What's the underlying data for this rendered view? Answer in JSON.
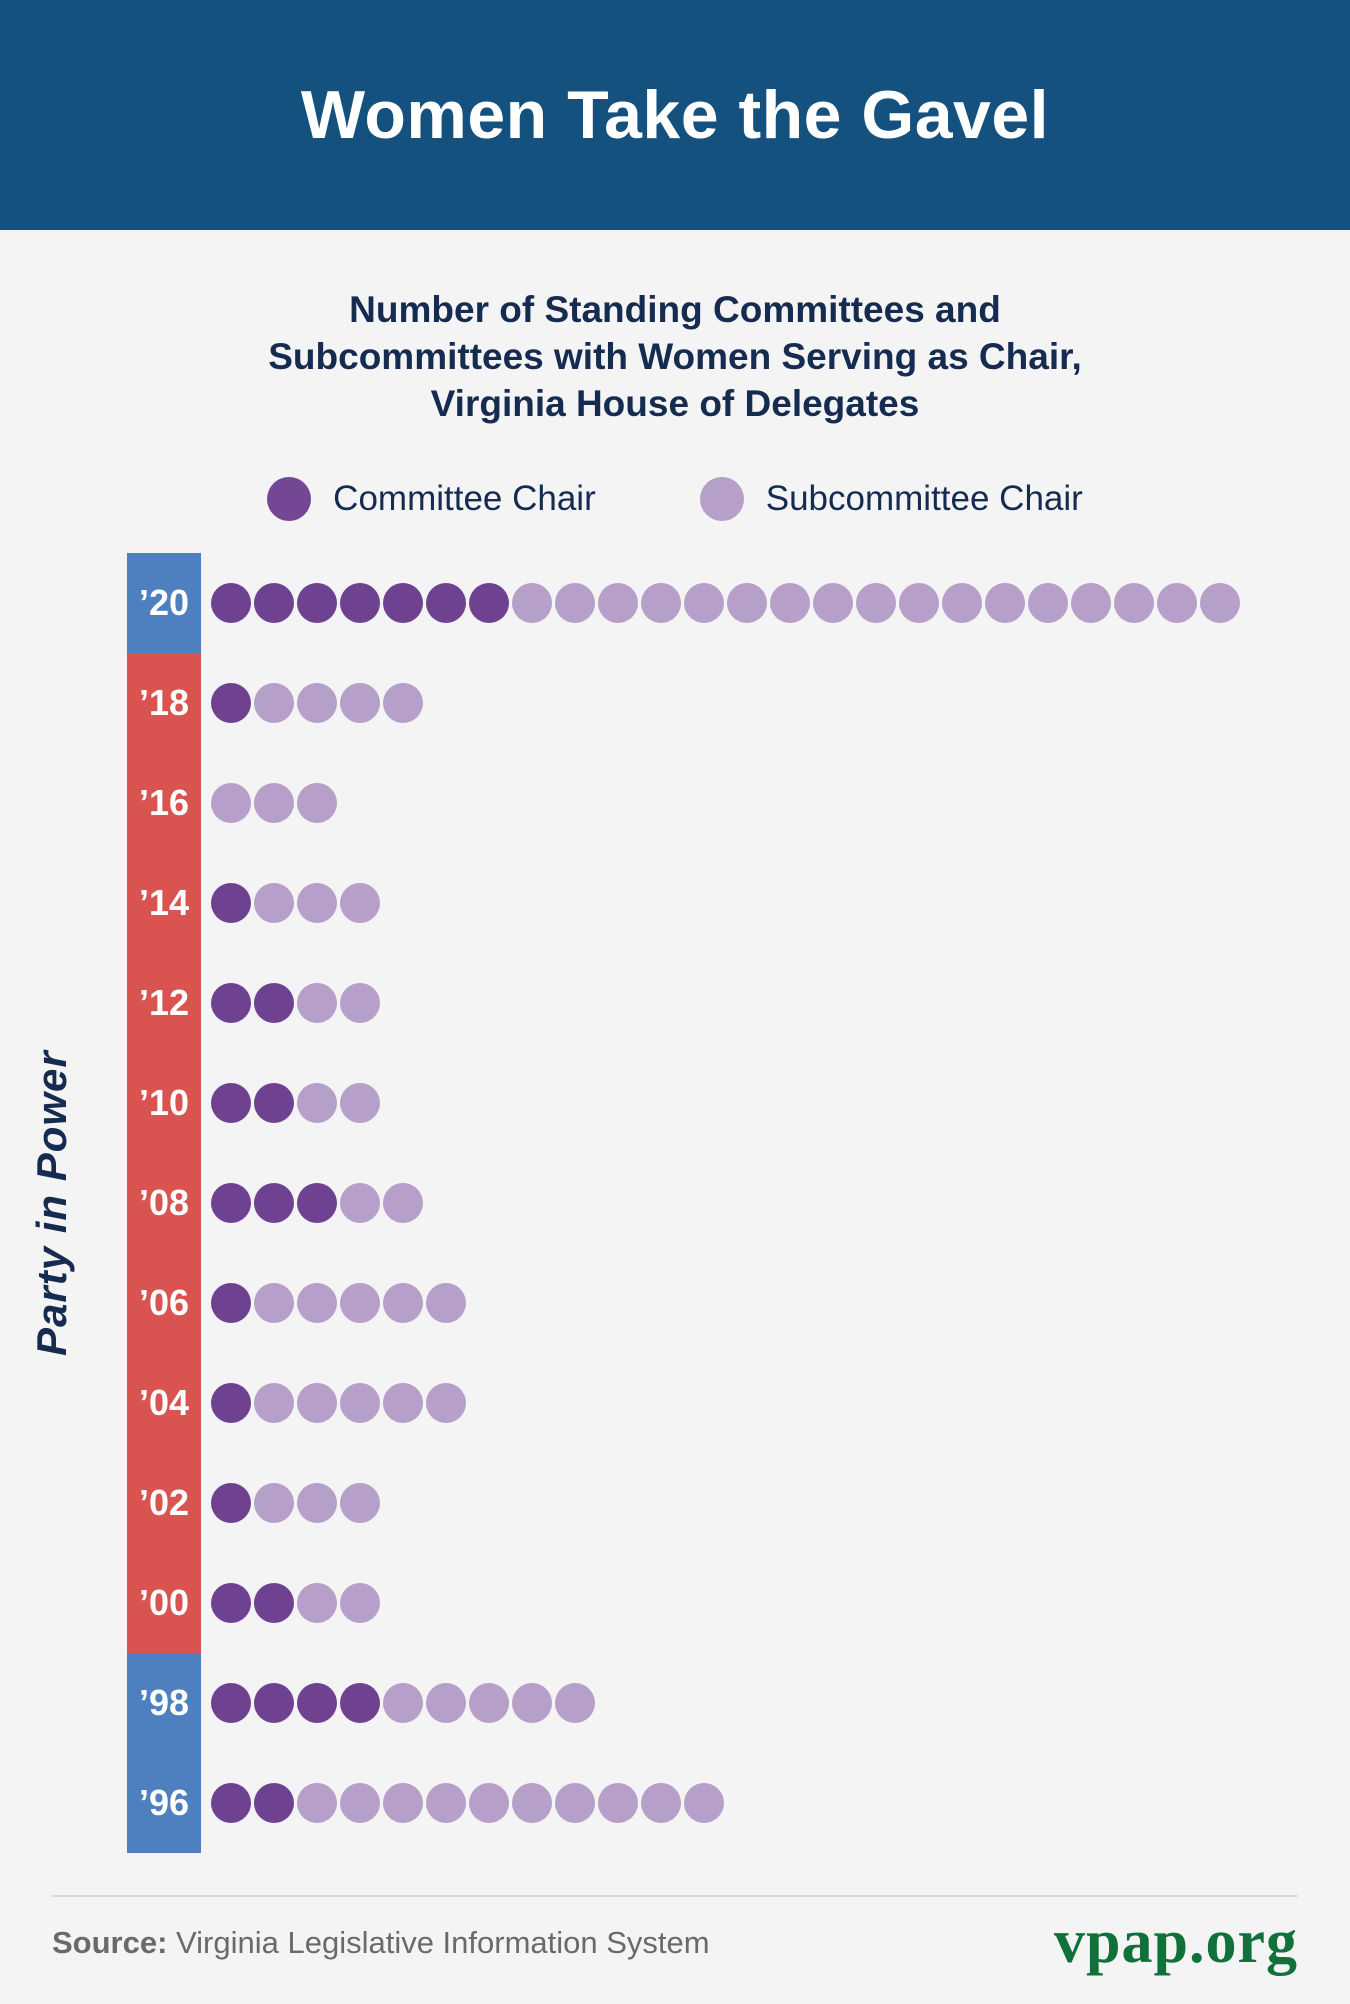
{
  "header": {
    "title": "Women Take the Gavel"
  },
  "subtitle": {
    "lines": [
      "Number of Standing Committees and",
      "Subcommittees with Women Serving as Chair,",
      "Virginia House of Delegates"
    ]
  },
  "legend": {
    "committee": {
      "label": "Committee Chair",
      "color": "#6F4191"
    },
    "subcommittee": {
      "label": "Subcommittee Chair",
      "color": "#B69FC9"
    }
  },
  "axis": {
    "y_label": "Party in Power"
  },
  "chart_data": {
    "type": "bar",
    "orientation": "horizontal-dot-matrix",
    "title": "Number of Standing Committees and Subcommittees with Women Serving as Chair, Virginia House of Delegates",
    "categories": [
      "’20",
      "’18",
      "’16",
      "’14",
      "’12",
      "’10",
      "’08",
      "’06",
      "’04",
      "’02",
      "’00",
      "’98",
      "’96"
    ],
    "series": [
      {
        "name": "Committee Chair",
        "color": "#6F4191",
        "values": [
          7,
          1,
          0,
          1,
          2,
          2,
          3,
          1,
          1,
          1,
          2,
          4,
          2
        ]
      },
      {
        "name": "Subcommittee Chair",
        "color": "#B69FC9",
        "values": [
          17,
          4,
          3,
          3,
          2,
          2,
          2,
          5,
          5,
          3,
          2,
          5,
          10
        ]
      }
    ],
    "party_in_power": [
      "D",
      "R",
      "R",
      "R",
      "R",
      "R",
      "R",
      "R",
      "R",
      "R",
      "R",
      "D",
      "D"
    ],
    "party_colors": {
      "D": "#4E80C0",
      "R": "#D95450"
    },
    "ylabel": "Party in Power",
    "legend_position": "top",
    "grid": false
  },
  "footer": {
    "source_label": "Source:",
    "source_text": " Virginia Legislative Information System",
    "logo_text": "vpap.org",
    "logo_color": "#11713B"
  }
}
